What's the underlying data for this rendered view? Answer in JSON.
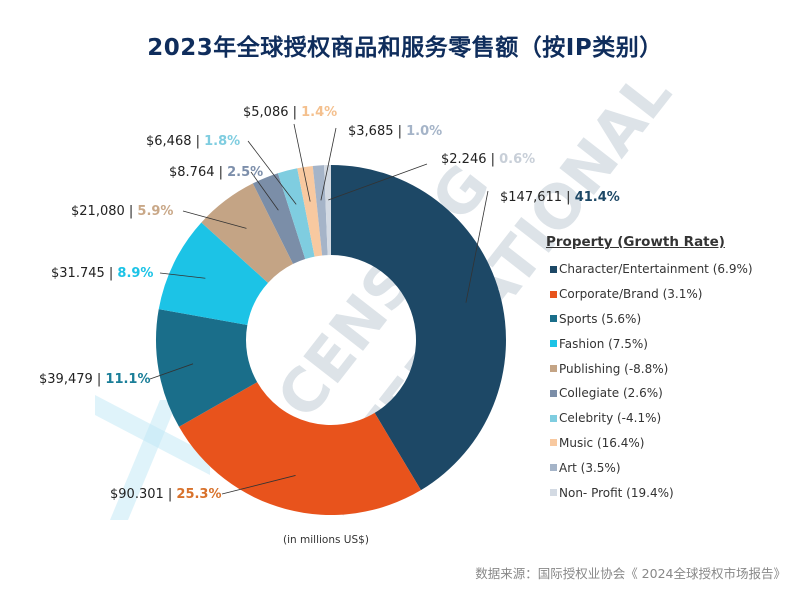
{
  "chart_data": {
    "type": "pie",
    "variant": "donut",
    "title": "2023年全球授权商品和服务零售额（按IP类别）",
    "legend_title": "Property (Growth Rate)",
    "legend_placement": "right",
    "units_note": "(in millions US$)",
    "source": "数据来源：国际授权业协会《 2024全球授权市场报告》",
    "watermark": "LICENSING INTERNATIONAL",
    "slices": [
      {
        "category": "Character/Entertainment",
        "growth": "(6.9%)",
        "value": 147611,
        "value_label": "$147,611",
        "pct_label": "41.4%",
        "color": "#1d4866",
        "pct_color": "#1d4866"
      },
      {
        "category": "Corporate/Brand",
        "growth": "(3.1%)",
        "value": 90301,
        "value_label": "$90.301",
        "pct_label": "25.3%",
        "color": "#e8531c",
        "pct_color": "#d8722c"
      },
      {
        "category": "Sports",
        "growth": "(5.6%)",
        "value": 39479,
        "value_label": "$39,479",
        "pct_label": "11.1%",
        "color": "#1a6e8a",
        "pct_color": "#1a7e98"
      },
      {
        "category": "Fashion",
        "growth": "(7.5%)",
        "value": 31745,
        "value_label": "$31.745",
        "pct_label": "8.9%",
        "color": "#1cc3e6",
        "pct_color": "#1cc3e6"
      },
      {
        "category": "Publishing",
        "growth": "(-8.8%)",
        "value": 21080,
        "value_label": "$21,080",
        "pct_label": "5.9%",
        "color": "#c4a485",
        "pct_color": "#c9a888"
      },
      {
        "category": "Collegiate",
        "growth": "(2.6%)",
        "value": 8764,
        "value_label": "$8.764",
        "pct_label": "2.5%",
        "color": "#7b8ea8",
        "pct_color": "#7d8fab"
      },
      {
        "category": "Celebrity",
        "growth": "(-4.1%)",
        "value": 6468,
        "value_label": "$6,468",
        "pct_label": "1.8%",
        "color": "#7fcde0",
        "pct_color": "#7fcde0"
      },
      {
        "category": "Music",
        "growth": "(16.4%)",
        "value": 5086,
        "value_label": "$5,086",
        "pct_label": "1.4%",
        "color": "#f8c9a0",
        "pct_color": "#f4c08e"
      },
      {
        "category": "Art",
        "growth": "(3.5%)",
        "value": 3685,
        "value_label": "$3,685",
        "pct_label": "1.0%",
        "color": "#a5b4c8",
        "pct_color": "#a5b4c8"
      },
      {
        "category": "Non- Profit",
        "growth": "(19.4%)",
        "value": 2246,
        "value_label": "$2.246",
        "pct_label": "0.6%",
        "color": "#d3dae3",
        "pct_color": "#c8cfd8"
      }
    ]
  }
}
